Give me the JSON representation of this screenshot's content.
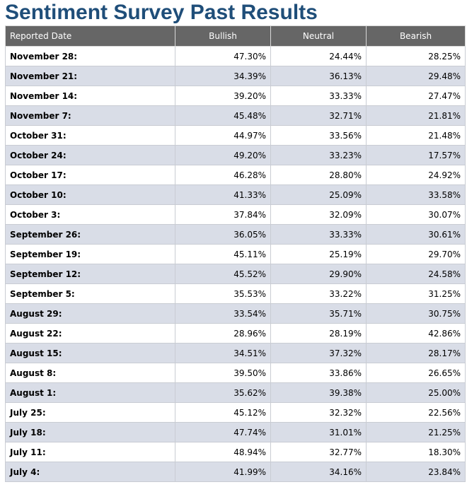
{
  "page": {
    "title": "Sentiment Survey Past Results"
  },
  "table": {
    "headers": [
      "Reported Date",
      "Bullish",
      "Neutral",
      "Bearish"
    ],
    "rows": [
      {
        "date": "November 28:",
        "bullish": "47.30%",
        "neutral": "24.44%",
        "bearish": "28.25%"
      },
      {
        "date": "November 21:",
        "bullish": "34.39%",
        "neutral": "36.13%",
        "bearish": "29.48%"
      },
      {
        "date": "November 14:",
        "bullish": "39.20%",
        "neutral": "33.33%",
        "bearish": "27.47%"
      },
      {
        "date": "November 7:",
        "bullish": "45.48%",
        "neutral": "32.71%",
        "bearish": "21.81%"
      },
      {
        "date": "October 31:",
        "bullish": "44.97%",
        "neutral": "33.56%",
        "bearish": "21.48%"
      },
      {
        "date": "October 24:",
        "bullish": "49.20%",
        "neutral": "33.23%",
        "bearish": "17.57%"
      },
      {
        "date": "October 17:",
        "bullish": "46.28%",
        "neutral": "28.80%",
        "bearish": "24.92%"
      },
      {
        "date": "October 10:",
        "bullish": "41.33%",
        "neutral": "25.09%",
        "bearish": "33.58%"
      },
      {
        "date": "October 3:",
        "bullish": "37.84%",
        "neutral": "32.09%",
        "bearish": "30.07%"
      },
      {
        "date": "September 26:",
        "bullish": "36.05%",
        "neutral": "33.33%",
        "bearish": "30.61%"
      },
      {
        "date": "September 19:",
        "bullish": "45.11%",
        "neutral": "25.19%",
        "bearish": "29.70%"
      },
      {
        "date": "September 12:",
        "bullish": "45.52%",
        "neutral": "29.90%",
        "bearish": "24.58%"
      },
      {
        "date": "September 5:",
        "bullish": "35.53%",
        "neutral": "33.22%",
        "bearish": "31.25%"
      },
      {
        "date": "August 29:",
        "bullish": "33.54%",
        "neutral": "35.71%",
        "bearish": "30.75%"
      },
      {
        "date": "August 22:",
        "bullish": "28.96%",
        "neutral": "28.19%",
        "bearish": "42.86%"
      },
      {
        "date": "August 15:",
        "bullish": "34.51%",
        "neutral": "37.32%",
        "bearish": "28.17%"
      },
      {
        "date": "August 8:",
        "bullish": "39.50%",
        "neutral": "33.86%",
        "bearish": "26.65%"
      },
      {
        "date": "August 1:",
        "bullish": "35.62%",
        "neutral": "39.38%",
        "bearish": "25.00%"
      },
      {
        "date": "July 25:",
        "bullish": "45.12%",
        "neutral": "32.32%",
        "bearish": "22.56%"
      },
      {
        "date": "July 18:",
        "bullish": "47.74%",
        "neutral": "31.01%",
        "bearish": "21.25%"
      },
      {
        "date": "July 11:",
        "bullish": "48.94%",
        "neutral": "32.77%",
        "bearish": "18.30%"
      },
      {
        "date": "July 4:",
        "bullish": "41.99%",
        "neutral": "34.16%",
        "bearish": "23.84%"
      }
    ]
  },
  "colors": {
    "title": "#1f4e79",
    "header_bg": "#666666",
    "header_text": "#ffffff",
    "row_alt_bg": "#d9dde7",
    "row_bg": "#ffffff"
  }
}
